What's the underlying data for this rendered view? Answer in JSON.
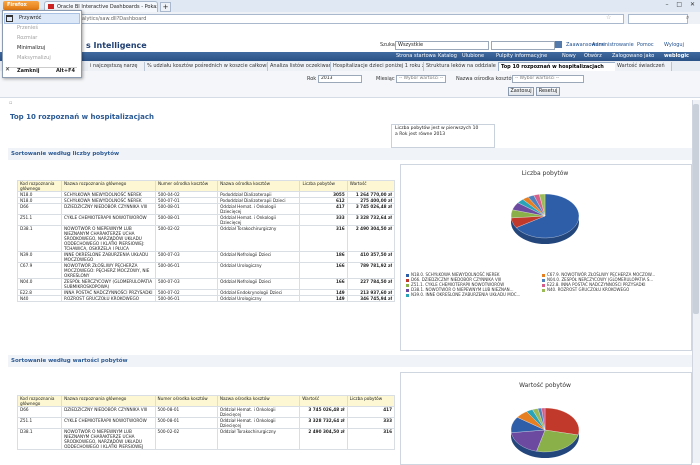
{
  "browser": {
    "firefox_button": "Firefox",
    "tab_title": "Oracle BI Interactive Dashboards - Pokaż",
    "url": "...analytics/saw.dll?Dashboard",
    "new_tab": "+",
    "window_controls": "– □ ✕"
  },
  "firefox_menu": {
    "items": [
      {
        "label": "Przywróć",
        "enabled": true
      },
      {
        "label": "Przenieś",
        "enabled": false
      },
      {
        "label": "Rozmiar",
        "enabled": false
      },
      {
        "label": "Minimalizuj",
        "enabled": true
      },
      {
        "label": "Maksymalizuj",
        "enabled": false
      },
      {
        "label": "Zamknij",
        "accel": "Alt+F4",
        "enabled": true
      }
    ]
  },
  "header": {
    "app_title": "s Intelligence",
    "search_label": "Szukaj",
    "search_scope": "Wszystkie",
    "advanced": "Zaawansowane",
    "admin": "Administrowanie",
    "help": "Pomoc",
    "logout": "Wyloguj"
  },
  "nav": {
    "items": [
      "Strona startowa",
      "Katalog",
      "Ulubione",
      "Pulpity informacyjne",
      "Nowy",
      "Otwórz",
      "Zalogowano jako"
    ],
    "user": "weblogic"
  },
  "dashboard_tabs": [
    {
      "label": "i najczęstszą narzę",
      "active": false
    },
    {
      "label": "% udziału kosztów pośrednich w koszcie całkowitym",
      "active": false
    },
    {
      "label": "Analiza listów oczekiwania pacj",
      "active": false
    },
    {
      "label": "Hospitalizacje dzieci poniżej 1 roku życia",
      "active": false
    },
    {
      "label": "Struktura leków na oddziale",
      "active": false
    },
    {
      "label": "Top 10 rozpoznań w hospitalizacjach",
      "active": true
    },
    {
      "label": "Wartość świadczeń",
      "active": false
    }
  ],
  "prompts": {
    "year_label": "Rok",
    "year_value": "2013",
    "month_label": "Miesiąc",
    "month_placeholder": "-- Wybór wartości --",
    "unit_label": "Nazwa ośrodka kosztów",
    "unit_placeholder": "-- Wybór wartości --",
    "apply_button": "Zastosuj",
    "reset_button": "Resetuj"
  },
  "page": {
    "title": "Top 10 rozpoznań w hospitalizacjach",
    "info_line1": "Liczba pobytów jest w pierwszych 10",
    "info_line2": "a Rok jest równe 2013",
    "section1_title": "Sortowanie według liczby pobytów",
    "section2_title": "Sortowanie według wartości pobytów"
  },
  "table1": {
    "headers": [
      "Kod rozpoznania głównego",
      "Nazwa rozpoznania głównego",
      "Numer ośrodka kosztów",
      "Nazwa ośrodka kosztów",
      "Liczba pobytów",
      "Wartość"
    ],
    "rows": [
      [
        "N18.0",
        "SCHYŁKOWA NIEWYDOLNOŚĆ NEREK",
        "500-04-02",
        "Pododdział Dializoterapii",
        "3055",
        "1 264 770,00 zł"
      ],
      [
        "N18.0",
        "SCHYŁKOWA NIEWYDOLNOŚĆ NEREK",
        "500-07-01",
        "Pododdział Dializoterapii Dzieci",
        "612",
        "275 400,00 zł"
      ],
      [
        "D66",
        "DZIEDZICZNY NIEDOBÓR CZYNNIKA VIII",
        "500-08-01",
        "Oddział Hemat. i Onkologii Dziecięcej",
        "417",
        "3 745 026,48 zł"
      ],
      [
        "Z51.1",
        "CYKLE CHEMIOTERAPII NOWOTWORÓW",
        "500-08-01",
        "Oddział Hemat. i Onkologii Dziecięcej",
        "333",
        "3 328 732,64 zł"
      ],
      [
        "D38.1",
        "NOWOTWÓR O NIEPEWNYM LUB NIEZNANYM CHARAKTERZE UCHA ŚRODKOWEGO, NARZĄDÓW UKŁADU ODDECHOWEGO I KLATKI PIERSIOWEJ: TCHAWICA, OSKRZELA I PŁUCA",
        "500-02-02",
        "Oddział Torakochirurgiczny",
        "316",
        "2 490 304,50 zł"
      ],
      [
        "N39.0",
        "INNE OKREŚLONE ZABURZENIA UKŁADU MOCZOWEGO",
        "500-07-03",
        "Oddział Nefrologii Dzieci",
        "186",
        "410 357,50 zł"
      ],
      [
        "C67.9",
        "NOWOTWÓR ZŁOŚLIWY PĘCHERZA MOCZOWEGO: PĘCHERZ MOCZOWY, NIE OKREŚLONY",
        "500-06-01",
        "Oddział Urologiczny",
        "166",
        "789 781,92 zł"
      ],
      [
        "N04.0",
        "ZESPÓŁ NERCZYCOWY (GLOMERULOPATIA SUBMIKROSKOPOWA)",
        "500-07-03",
        "Oddział Nefrologii Dzieci",
        "166",
        "227 784,50 zł"
      ],
      [
        "E22.8",
        "INNA POSTAĆ NADCZYNNOŚCI PRZYSADKI",
        "500-07-02",
        "Oddział Endokrynologii Dzieci",
        "149",
        "213 937,60 zł"
      ],
      [
        "N40",
        "ROZROST GRUCZOŁU KROKOWEGO",
        "500-06-01",
        "Oddział Urologiczny",
        "149",
        "346 745,94 zł"
      ]
    ]
  },
  "table2": {
    "headers": [
      "Kod rozpoznania głównego",
      "Nazwa rozpoznania głównego",
      "Numer ośrodka kosztów",
      "Nazwa ośrodka kosztów",
      "Wartość",
      "Liczba pobytów"
    ],
    "rows": [
      [
        "D66",
        "DZIEDZICZNY NIEDOBÓR CZYNNIKA VIII",
        "500-08-01",
        "Oddział Hemat. i Onkologii Dziecięcej",
        "3 745 026,48 zł",
        "417"
      ],
      [
        "Z51.1",
        "CYKLE CHEMIOTERAPII NOWOTWORÓW",
        "500-08-01",
        "Oddział Hemat. i Onkologii Dziecięcej",
        "3 328 732,64 zł",
        "333"
      ],
      [
        "D38.1",
        "NOWOTWÓR O NIEPEWNYM LUB NIEZNANYM CHARAKTERZE UCHA ŚRODKOWEGO, NARZĄDÓW UKŁADU ODDECHOWEGO I KLATKI PIERSIOWEJ",
        "500-02-02",
        "Oddział Torakochirurgiczny",
        "2 490 304,50 zł",
        "316"
      ]
    ]
  },
  "chart_data": [
    {
      "type": "pie",
      "title": "Liczba pobytów",
      "labels": [
        "N18.0. SCHYŁKOWA NIEWYDOLNOŚĆ NEREK",
        "D66. DZIEDZICZNY NIEDOBÓR CZYNNIKA VIII",
        "Z51.1. CYKLE CHEMIOTERAPII NOWOTWORÓW",
        "D38.1. NOWOTWÓR O NIEPEWNYM LUB NIEZNAN...",
        "N39.0. INNE OKREŚLONE ZABURZENIA UKŁADU MOC...",
        "C67.9. NOWOTWÓR ZŁOŚLIWY PĘCHERZA MOCZOW...",
        "N04.0. ZESPÓŁ NERCZYCOWY (GLOMERULOPATIA S...",
        "E22.8. INNA POSTAĆ NADCZYNNOŚCI PRZYSADKI",
        "N40. ROZROST GRUCZOŁU KROKOWEGO"
      ],
      "values": [
        3667,
        417,
        333,
        316,
        186,
        166,
        166,
        149,
        149
      ],
      "colors": [
        "#2f5ea8",
        "#c0392b",
        "#8ab04a",
        "#6b4aa0",
        "#29a3b8",
        "#e67e22",
        "#4f81bd",
        "#d35f8a",
        "#9bbb59"
      ],
      "legend": "bottom"
    },
    {
      "type": "pie",
      "title": "Wartość pobytów",
      "labels": [
        "D66",
        "Z51.1",
        "D38.1",
        "N18.0",
        "C67.9",
        "N39.0",
        "N40",
        "N04.0",
        "E22.8"
      ],
      "values": [
        3745026.48,
        3328732.64,
        2490304.5,
        1540170.0,
        789781.92,
        410357.5,
        346745.94,
        227784.5,
        213937.6
      ],
      "colors": [
        "#c0392b",
        "#8ab04a",
        "#6b4aa0",
        "#2f5ea8",
        "#e67e22",
        "#29a3b8",
        "#9bbb59",
        "#4f81bd",
        "#d35f8a"
      ]
    }
  ]
}
